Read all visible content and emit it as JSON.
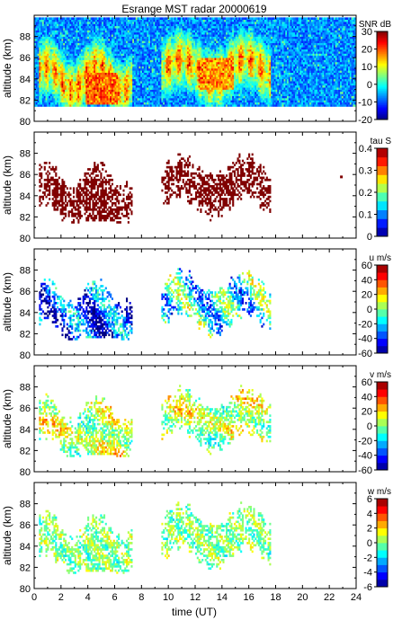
{
  "title": "Esrange MST radar 20000619",
  "xlabel": "time (UT)",
  "x_ticks": [
    "0",
    "2",
    "4",
    "6",
    "8",
    "10",
    "12",
    "14",
    "16",
    "18",
    "20",
    "22",
    "24"
  ],
  "chart_data": [
    {
      "type": "heatmap",
      "panel": "snr",
      "ylabel": "altitude (km)",
      "xlim": [
        0,
        24
      ],
      "ylim": [
        80,
        90
      ],
      "y_ticks": [
        "80",
        "82",
        "84",
        "86",
        "88"
      ],
      "colorbar": {
        "label": "SNR dB",
        "min": -20,
        "max": 30,
        "ticks": [
          "-20",
          "-10",
          "0",
          "10",
          "20",
          "30"
        ]
      },
      "grid": false,
      "background": "full-field",
      "echo_regions": [
        {
          "t_start": 0.3,
          "t_end": 7.2,
          "alt_low": 81.8,
          "alt_high": 88.5,
          "value": 15
        },
        {
          "t_start": 9.5,
          "t_end": 17.5,
          "alt_low": 82.2,
          "alt_high": 88.3,
          "value": 12
        },
        {
          "t_start": 4.0,
          "t_end": 6.0,
          "alt_low": 82.0,
          "alt_high": 84.0,
          "value": 25
        },
        {
          "t_start": 12.0,
          "t_end": 15.0,
          "alt_low": 83.0,
          "alt_high": 85.5,
          "value": 22
        }
      ]
    },
    {
      "type": "heatmap",
      "panel": "tau",
      "ylabel": "altitude (km)",
      "xlim": [
        0,
        24
      ],
      "ylim": [
        80,
        90
      ],
      "y_ticks": [
        "80",
        "82",
        "84",
        "86",
        "88"
      ],
      "colorbar": {
        "label": "tau S",
        "min": 0,
        "max": 0.4,
        "ticks": [
          "0",
          "0.1",
          "0.2",
          "0.3",
          "0.4"
        ]
      },
      "grid": false,
      "typical_value": 0.4,
      "echo_regions": [
        {
          "t_start": 0.8,
          "t_end": 7.0,
          "alt_low": 81.5,
          "alt_high": 87.8,
          "value": 0.4
        },
        {
          "t_start": 9.8,
          "t_end": 18.0,
          "alt_low": 82.5,
          "alt_high": 88.2,
          "value": 0.4
        },
        {
          "t_start": 22.8,
          "t_end": 22.9,
          "alt_low": 85.7,
          "alt_high": 85.9,
          "value": 0.4
        }
      ]
    },
    {
      "type": "heatmap",
      "panel": "u",
      "ylabel": "altitude (km)",
      "xlim": [
        0,
        24
      ],
      "ylim": [
        80,
        90
      ],
      "y_ticks": [
        "80",
        "82",
        "84",
        "86",
        "88"
      ],
      "colorbar": {
        "label": "u m/s",
        "min": -60,
        "max": 60,
        "ticks": [
          "-60",
          "-40",
          "-20",
          "0",
          "20",
          "40",
          "60"
        ]
      },
      "grid": false,
      "typical_range": [
        -50,
        40
      ]
    },
    {
      "type": "heatmap",
      "panel": "v",
      "ylabel": "altitude (km)",
      "xlim": [
        0,
        24
      ],
      "ylim": [
        80,
        90
      ],
      "y_ticks": [
        "80",
        "82",
        "84",
        "86",
        "88"
      ],
      "colorbar": {
        "label": "v m/s",
        "min": -60,
        "max": 60,
        "ticks": [
          "-60",
          "-40",
          "-20",
          "0",
          "20",
          "40",
          "60"
        ]
      },
      "grid": false,
      "typical_range": [
        -30,
        40
      ]
    },
    {
      "type": "heatmap",
      "panel": "w",
      "ylabel": "altitude (km)",
      "xlim": [
        0,
        24
      ],
      "ylim": [
        80,
        90
      ],
      "y_ticks": [
        "80",
        "82",
        "84",
        "86",
        "88"
      ],
      "colorbar": {
        "label": "w m/s",
        "min": -6,
        "max": 6,
        "ticks": [
          "-6",
          "-4",
          "-2",
          "0",
          "2",
          "4",
          "6"
        ]
      },
      "grid": false,
      "typical_range": [
        -3,
        3
      ]
    }
  ]
}
